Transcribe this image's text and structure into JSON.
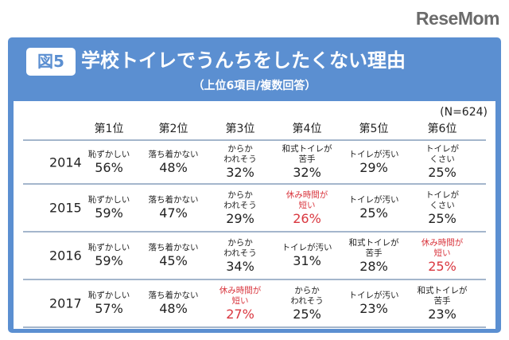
{
  "logo": "ReseMom",
  "badge": "図5",
  "title": "学校トイレでうんちをしたくない理由",
  "subtitle": "（上位6項目/複数回答）",
  "n_note": "(N=624)",
  "headers": [
    "第1位",
    "第2位",
    "第3位",
    "第4位",
    "第5位",
    "第6位"
  ],
  "highlight_color": "#d9363e",
  "rows": [
    {
      "year": "2014",
      "cells": [
        {
          "label": [
            "恥ずかしい"
          ],
          "pct": "56%",
          "hl": false
        },
        {
          "label": [
            "落ち着かない"
          ],
          "pct": "48%",
          "hl": false
        },
        {
          "label": [
            "からか",
            "われそう"
          ],
          "pct": "32%",
          "hl": false
        },
        {
          "label": [
            "和式トイレが",
            "苦手"
          ],
          "pct": "32%",
          "hl": false
        },
        {
          "label": [
            "トイレが汚い"
          ],
          "pct": "29%",
          "hl": false
        },
        {
          "label": [
            "トイレが",
            "くさい"
          ],
          "pct": "25%",
          "hl": false
        }
      ]
    },
    {
      "year": "2015",
      "cells": [
        {
          "label": [
            "恥ずかしい"
          ],
          "pct": "59%",
          "hl": false
        },
        {
          "label": [
            "落ち着かない"
          ],
          "pct": "47%",
          "hl": false
        },
        {
          "label": [
            "からか",
            "われそう"
          ],
          "pct": "29%",
          "hl": false
        },
        {
          "label": [
            "休み時間が",
            "短い"
          ],
          "pct": "26%",
          "hl": true
        },
        {
          "label": [
            "トイレが汚い"
          ],
          "pct": "25%",
          "hl": false
        },
        {
          "label": [
            "トイレが",
            "くさい"
          ],
          "pct": "25%",
          "hl": false
        }
      ]
    },
    {
      "year": "2016",
      "cells": [
        {
          "label": [
            "恥ずかしい"
          ],
          "pct": "59%",
          "hl": false
        },
        {
          "label": [
            "落ち着かない"
          ],
          "pct": "45%",
          "hl": false
        },
        {
          "label": [
            "からか",
            "われそう"
          ],
          "pct": "34%",
          "hl": false
        },
        {
          "label": [
            "トイレが汚い"
          ],
          "pct": "31%",
          "hl": false
        },
        {
          "label": [
            "和式トイレが",
            "苦手"
          ],
          "pct": "28%",
          "hl": false
        },
        {
          "label": [
            "休み時間が",
            "短い"
          ],
          "pct": "25%",
          "hl": true
        }
      ]
    },
    {
      "year": "2017",
      "cells": [
        {
          "label": [
            "恥ずかしい"
          ],
          "pct": "57%",
          "hl": false
        },
        {
          "label": [
            "落ち着かない"
          ],
          "pct": "48%",
          "hl": false
        },
        {
          "label": [
            "休み時間が",
            "短い"
          ],
          "pct": "27%",
          "hl": true
        },
        {
          "label": [
            "からか",
            "われそう"
          ],
          "pct": "25%",
          "hl": false
        },
        {
          "label": [
            "トイレが汚い"
          ],
          "pct": "23%",
          "hl": false
        },
        {
          "label": [
            "和式トイレが",
            "苦手"
          ],
          "pct": "23%",
          "hl": false
        }
      ]
    }
  ]
}
